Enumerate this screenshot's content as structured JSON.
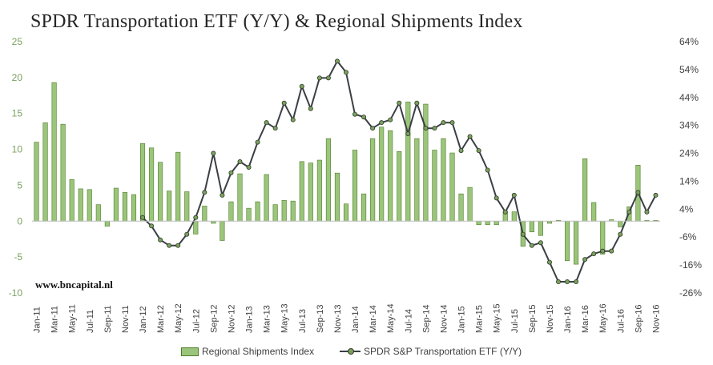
{
  "chart_data": {
    "type": "bar+line",
    "title": "SPDR Transportation ETF (Y/Y) & Regional Shipments Index",
    "watermark": "www.bncapital.nl",
    "x_tick_labels": [
      "Jan-11",
      "Mar-11",
      "May-11",
      "Jul-11",
      "Sep-11",
      "Nov-11",
      "Jan-12",
      "Mar-12",
      "May-12",
      "Jul-12",
      "Sep-12",
      "Nov-12",
      "Jan-13",
      "Mar-13",
      "May-13",
      "Jul-13",
      "Sep-13",
      "Nov-13",
      "Jan-14",
      "Mar-14",
      "May-14",
      "Jul-14",
      "Sep-14",
      "Nov-14",
      "Jan-15",
      "Mar-15",
      "May-15",
      "Jul-15",
      "Sep-15",
      "Nov-15",
      "Jan-16",
      "Mar-16",
      "May-16",
      "Jul-16",
      "Sep-16",
      "Nov-16"
    ],
    "months": [
      "Jan-11",
      "Feb-11",
      "Mar-11",
      "Apr-11",
      "May-11",
      "Jun-11",
      "Jul-11",
      "Aug-11",
      "Sep-11",
      "Oct-11",
      "Nov-11",
      "Dec-11",
      "Jan-12",
      "Feb-12",
      "Mar-12",
      "Apr-12",
      "May-12",
      "Jun-12",
      "Jul-12",
      "Aug-12",
      "Sep-12",
      "Oct-12",
      "Nov-12",
      "Dec-12",
      "Jan-13",
      "Feb-13",
      "Mar-13",
      "Apr-13",
      "May-13",
      "Jun-13",
      "Jul-13",
      "Aug-13",
      "Sep-13",
      "Oct-13",
      "Nov-13",
      "Dec-13",
      "Jan-14",
      "Feb-14",
      "Mar-14",
      "Apr-14",
      "May-14",
      "Jun-14",
      "Jul-14",
      "Aug-14",
      "Sep-14",
      "Oct-14",
      "Nov-14",
      "Dec-14",
      "Jan-15",
      "Feb-15",
      "Mar-15",
      "Apr-15",
      "May-15",
      "Jun-15",
      "Jul-15",
      "Aug-15",
      "Sep-15",
      "Oct-15",
      "Nov-15",
      "Dec-15",
      "Jan-16",
      "Feb-16",
      "Mar-16",
      "Apr-16",
      "May-16",
      "Jun-16",
      "Jul-16",
      "Aug-16",
      "Sep-16",
      "Oct-16",
      "Nov-16"
    ],
    "y_left": {
      "min": -10,
      "max": 25,
      "ticks": [
        "-10",
        "-5",
        "0",
        "5",
        "10",
        "15",
        "20",
        "25"
      ]
    },
    "y_right": {
      "min": -26,
      "max": 64,
      "ticks": [
        "-26%",
        "-16%",
        "-6%",
        "4%",
        "14%",
        "24%",
        "34%",
        "44%",
        "54%",
        "64%"
      ]
    },
    "series": [
      {
        "name": "Regional Shipments Index",
        "kind": "bar",
        "axis": "left",
        "color": "#9bc57a",
        "edge": "#4f7d2c",
        "values": [
          11,
          13.7,
          19.3,
          13.5,
          5.8,
          4.5,
          4.4,
          2.3,
          -0.7,
          4.6,
          4.0,
          3.7,
          10.8,
          10.2,
          8.2,
          4.2,
          9.6,
          4.1,
          -1.8,
          2.1,
          -0.3,
          -2.7,
          2.7,
          6.6,
          1.8,
          2.7,
          6.5,
          2.3,
          2.9,
          2.8,
          8.3,
          8.1,
          8.5,
          11.5,
          6.7,
          2.4,
          9.9,
          3.8,
          11.5,
          13.1,
          12.6,
          9.7,
          16.6,
          11.5,
          16.3,
          9.9,
          11.5,
          9.5,
          3.8,
          4.7,
          -0.5,
          -0.5,
          -0.5,
          1.3,
          1.3,
          -3.5,
          -1.5,
          -2.0,
          -0.3,
          0.1,
          -5.5,
          -6.0,
          8.7,
          2.6,
          -4.6,
          0.2,
          -0.8,
          2.0,
          7.8,
          0.1,
          0.1
        ]
      },
      {
        "name": "SPDR S&P Transportation ETF (Y/Y)",
        "kind": "line",
        "axis": "right",
        "color": "#3a3f44",
        "marker_fill": "#7aa05e",
        "values": [
          null,
          null,
          null,
          null,
          null,
          null,
          null,
          null,
          null,
          null,
          null,
          null,
          1,
          -2,
          -7,
          -9,
          -9,
          -5,
          1,
          10,
          24,
          9,
          17,
          21,
          19,
          28,
          35,
          33,
          42,
          36,
          48,
          40,
          51,
          51,
          57,
          53,
          38,
          37,
          33,
          35,
          36,
          42,
          31,
          42,
          33,
          33,
          35,
          35,
          25,
          30,
          25,
          18,
          8,
          3,
          9,
          -5,
          -9,
          -8,
          -15,
          -22,
          -22,
          -22,
          -14,
          -12,
          -11,
          -11,
          -5,
          3,
          10,
          3,
          9
        ]
      }
    ]
  }
}
